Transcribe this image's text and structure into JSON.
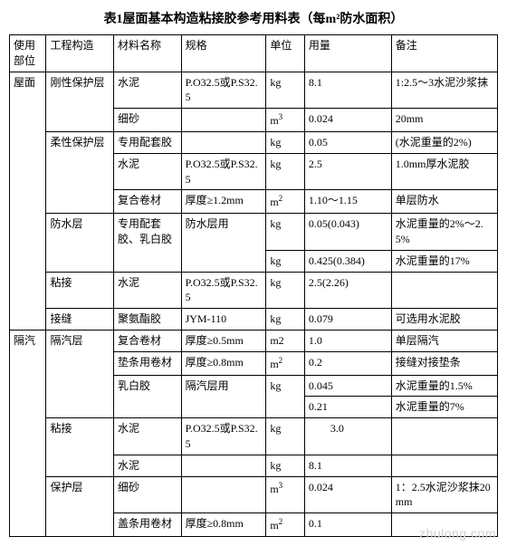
{
  "title": "表1屋面基本构造粘接胶参考用料表（每m²防水面积）",
  "headers": {
    "c1": "使用部位",
    "c2": "工程构造",
    "c3": "材料名称",
    "c4": "规格",
    "c5": "单位",
    "c6": "用量",
    "c7": "备注"
  },
  "sec1": {
    "name": "屋面"
  },
  "sec2": {
    "name": "隔汽"
  },
  "g1": {
    "name": "刚性保护层",
    "r1": {
      "mat": "水泥",
      "spec": "P.O32.5或P.S32.5",
      "unit": "kg",
      "amount": "8.1",
      "note": "1:2.5～3水泥沙浆抹"
    },
    "r2": {
      "mat": "细砂",
      "spec": "",
      "unit_html": "m³",
      "amount": "0.024",
      "note": "20mm"
    }
  },
  "g2": {
    "name": "柔性保护层",
    "r1": {
      "mat": "专用配套胶",
      "spec": "",
      "unit": "kg",
      "amount": "0.05",
      "note": "(水泥重量的2%)"
    },
    "r2": {
      "mat": "水泥",
      "spec": "P.O32.5或P.S32.5",
      "unit": "kg",
      "amount": "2.5",
      "note": "1.0mm厚水泥胶"
    },
    "r3": {
      "mat": "复合卷材",
      "spec": "厚度≥1.2mm",
      "unit_html": "m²",
      "amount": "1.10～1.15",
      "note": "单层防水"
    }
  },
  "g3": {
    "name": "防水层",
    "r1": {
      "mat": "专用配套胶、乳白胶",
      "spec": "防水层用",
      "unit": "kg",
      "amount": "0.05(0.043)",
      "note": "水泥重量的2%～2.5%"
    },
    "r2": {
      "unit": "kg",
      "amount": "0.425(0.384)",
      "note": "水泥重量的17%"
    }
  },
  "g4": {
    "name": "粘接",
    "r1": {
      "mat": "水泥",
      "spec": "P.O32.5或P.S32.5",
      "unit": "kg",
      "amount": "2.5(2.26)",
      "note": ""
    }
  },
  "g5": {
    "name": "接缝",
    "r1": {
      "mat": "聚氨酯胶",
      "spec": "JYM-110",
      "unit": "kg",
      "amount": "0.079",
      "note": "可选用水泥胶"
    }
  },
  "g6": {
    "name": "隔汽层",
    "r1": {
      "mat": "复合卷材",
      "spec": "厚度≥0.5mm",
      "unit": "m2",
      "amount": "1.0",
      "note": "单层隔汽"
    },
    "r2": {
      "mat": "垫条用卷材",
      "spec": "厚度≥0.8mm",
      "unit_html": "m²",
      "amount": "0.2",
      "note": "接缝对接垫条"
    },
    "r3": {
      "mat": "乳白胶",
      "spec": "隔汽层用",
      "unit": "kg",
      "amount": "0.045",
      "note": "水泥重量的1.5%"
    },
    "r4": {
      "amount": "0.21",
      "note": "水泥重量的7%"
    }
  },
  "g7": {
    "name": "粘接",
    "r1": {
      "mat": "水泥",
      "spec": "P.O32.5或P.S32.5",
      "unit": "kg",
      "amount": "　　3.0",
      "note": ""
    },
    "r2": {
      "mat": "水泥",
      "spec": "",
      "unit": "kg",
      "amount": "8.1",
      "note": ""
    }
  },
  "g8": {
    "name": "保护层",
    "r1": {
      "mat": "细砂",
      "spec": "",
      "unit_html": "m³",
      "amount": "0.024",
      "note": "1：2.5水泥沙浆抹20mm"
    },
    "r2": {
      "mat": "盖条用卷材",
      "spec": "厚度≥0.8mm",
      "unit_html": "m²",
      "amount": "0.1",
      "note": ""
    }
  },
  "watermark": "zhulong.com"
}
